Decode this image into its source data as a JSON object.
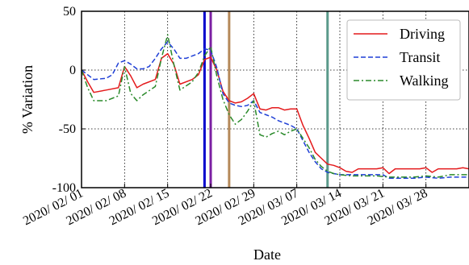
{
  "chart_data": {
    "type": "line",
    "xlabel": "Date",
    "ylabel": "% Variation",
    "ylim": [
      -100,
      50
    ],
    "yticks": [
      50,
      0,
      -50,
      -100
    ],
    "x_start_date": "2020/02/01",
    "x_end_date": "2020/04/04",
    "xticks": [
      {
        "date": "2020/02/01",
        "label": "2020/ 02/ 01"
      },
      {
        "date": "2020/02/08",
        "label": "2020/ 02/ 08"
      },
      {
        "date": "2020/02/15",
        "label": "2020/ 02/ 15"
      },
      {
        "date": "2020/02/22",
        "label": "2020/ 02/ 22"
      },
      {
        "date": "2020/02/29",
        "label": "2020/ 02/ 29"
      },
      {
        "date": "2020/03/07",
        "label": "2020/ 03/ 07"
      },
      {
        "date": "2020/03/14",
        "label": "2020/ 03/ 14"
      },
      {
        "date": "2020/03/21",
        "label": "2020/ 03/ 21"
      },
      {
        "date": "2020/03/28",
        "label": "2020/ 03/ 28"
      }
    ],
    "grid": true,
    "legend_position": "top-right",
    "vlines": [
      {
        "date": "2020/02/21",
        "color": "#0000cc"
      },
      {
        "date": "2020/02/22",
        "color": "#7b1fa2"
      },
      {
        "date": "2020/02/25",
        "color": "#b5895a"
      },
      {
        "date": "2020/03/12",
        "color": "#5b9a8b"
      }
    ],
    "series": [
      {
        "name": "Driving",
        "color": "#e41a1c",
        "dash": "",
        "points": [
          [
            "2020/02/01",
            0
          ],
          [
            "2020/02/02",
            -10
          ],
          [
            "2020/02/03",
            -19
          ],
          [
            "2020/02/05",
            -17
          ],
          [
            "2020/02/07",
            -15
          ],
          [
            "2020/02/08",
            3
          ],
          [
            "2020/02/09",
            -5
          ],
          [
            "2020/02/10",
            -15
          ],
          [
            "2020/02/11",
            -12
          ],
          [
            "2020/02/13",
            -8
          ],
          [
            "2020/02/14",
            10
          ],
          [
            "2020/02/15",
            14
          ],
          [
            "2020/02/16",
            5
          ],
          [
            "2020/02/17",
            -12
          ],
          [
            "2020/02/19",
            -8
          ],
          [
            "2020/02/20",
            -4
          ],
          [
            "2020/02/21",
            9
          ],
          [
            "2020/02/22",
            11
          ],
          [
            "2020/02/23",
            0
          ],
          [
            "2020/02/24",
            -18
          ],
          [
            "2020/02/25",
            -26
          ],
          [
            "2020/02/26",
            -28
          ],
          [
            "2020/02/27",
            -27
          ],
          [
            "2020/02/28",
            -24
          ],
          [
            "2020/02/29",
            -20
          ],
          [
            "2020/03/01",
            -33
          ],
          [
            "2020/03/02",
            -34
          ],
          [
            "2020/03/03",
            -32
          ],
          [
            "2020/03/04",
            -32
          ],
          [
            "2020/03/05",
            -34
          ],
          [
            "2020/03/06",
            -33
          ],
          [
            "2020/03/07",
            -33
          ],
          [
            "2020/03/08",
            -47
          ],
          [
            "2020/03/09",
            -58
          ],
          [
            "2020/03/10",
            -70
          ],
          [
            "2020/03/11",
            -75
          ],
          [
            "2020/03/12",
            -80
          ],
          [
            "2020/03/13",
            -81
          ],
          [
            "2020/03/14",
            -83
          ],
          [
            "2020/03/15",
            -86
          ],
          [
            "2020/03/16",
            -87
          ],
          [
            "2020/03/17",
            -84
          ],
          [
            "2020/03/18",
            -84
          ],
          [
            "2020/03/19",
            -84
          ],
          [
            "2020/03/20",
            -84
          ],
          [
            "2020/03/21",
            -83
          ],
          [
            "2020/03/22",
            -88
          ],
          [
            "2020/03/23",
            -84
          ],
          [
            "2020/03/24",
            -84
          ],
          [
            "2020/03/25",
            -84
          ],
          [
            "2020/03/26",
            -84
          ],
          [
            "2020/03/27",
            -84
          ],
          [
            "2020/03/28",
            -83
          ],
          [
            "2020/03/29",
            -87
          ],
          [
            "2020/03/30",
            -84
          ],
          [
            "2020/03/31",
            -84
          ],
          [
            "2020/04/01",
            -84
          ],
          [
            "2020/04/02",
            -84
          ],
          [
            "2020/04/03",
            -83
          ],
          [
            "2020/04/04",
            -84
          ]
        ]
      },
      {
        "name": "Transit",
        "color": "#1f3fd6",
        "dash": "6,3",
        "points": [
          [
            "2020/02/01",
            0
          ],
          [
            "2020/02/02",
            -4
          ],
          [
            "2020/02/03",
            -8
          ],
          [
            "2020/02/05",
            -7
          ],
          [
            "2020/02/06",
            -4
          ],
          [
            "2020/02/07",
            6
          ],
          [
            "2020/02/08",
            8
          ],
          [
            "2020/02/09",
            5
          ],
          [
            "2020/02/10",
            1
          ],
          [
            "2020/02/11",
            1
          ],
          [
            "2020/02/12",
            3
          ],
          [
            "2020/02/13",
            10
          ],
          [
            "2020/02/14",
            18
          ],
          [
            "2020/02/15",
            24
          ],
          [
            "2020/02/16",
            18
          ],
          [
            "2020/02/17",
            10
          ],
          [
            "2020/02/18",
            10
          ],
          [
            "2020/02/20",
            14
          ],
          [
            "2020/02/21",
            18
          ],
          [
            "2020/02/22",
            17
          ],
          [
            "2020/02/23",
            2
          ],
          [
            "2020/02/24",
            -20
          ],
          [
            "2020/02/25",
            -28
          ],
          [
            "2020/02/26",
            -30
          ],
          [
            "2020/02/27",
            -31
          ],
          [
            "2020/02/28",
            -30
          ],
          [
            "2020/02/29",
            -26
          ],
          [
            "2020/03/01",
            -36
          ],
          [
            "2020/03/02",
            -38
          ],
          [
            "2020/03/03",
            -40
          ],
          [
            "2020/03/04",
            -43
          ],
          [
            "2020/03/05",
            -45
          ],
          [
            "2020/03/06",
            -47
          ],
          [
            "2020/03/07",
            -50
          ],
          [
            "2020/03/08",
            -60
          ],
          [
            "2020/03/09",
            -70
          ],
          [
            "2020/03/10",
            -78
          ],
          [
            "2020/03/11",
            -84
          ],
          [
            "2020/03/12",
            -87
          ],
          [
            "2020/03/13",
            -88
          ],
          [
            "2020/03/14",
            -89
          ],
          [
            "2020/03/16",
            -89
          ],
          [
            "2020/03/18",
            -89
          ],
          [
            "2020/03/20",
            -89
          ],
          [
            "2020/03/21",
            -89
          ],
          [
            "2020/03/22",
            -92
          ],
          [
            "2020/03/24",
            -92
          ],
          [
            "2020/03/26",
            -92
          ],
          [
            "2020/03/28",
            -91
          ],
          [
            "2020/03/30",
            -92
          ],
          [
            "2020/04/01",
            -91
          ],
          [
            "2020/04/03",
            -91
          ],
          [
            "2020/04/04",
            -91
          ]
        ]
      },
      {
        "name": "Walking",
        "color": "#2a8a2a",
        "dash": "7,3,2,3",
        "points": [
          [
            "2020/02/01",
            0
          ],
          [
            "2020/02/02",
            -15
          ],
          [
            "2020/02/03",
            -26
          ],
          [
            "2020/02/05",
            -26
          ],
          [
            "2020/02/07",
            -22
          ],
          [
            "2020/02/08",
            3
          ],
          [
            "2020/02/09",
            -20
          ],
          [
            "2020/02/10",
            -26
          ],
          [
            "2020/02/11",
            -21
          ],
          [
            "2020/02/13",
            -14
          ],
          [
            "2020/02/14",
            10
          ],
          [
            "2020/02/15",
            30
          ],
          [
            "2020/02/16",
            5
          ],
          [
            "2020/02/17",
            -17
          ],
          [
            "2020/02/19",
            -10
          ],
          [
            "2020/02/20",
            -2
          ],
          [
            "2020/02/21",
            12
          ],
          [
            "2020/02/22",
            20
          ],
          [
            "2020/02/23",
            -5
          ],
          [
            "2020/02/24",
            -25
          ],
          [
            "2020/02/25",
            -38
          ],
          [
            "2020/02/26",
            -46
          ],
          [
            "2020/02/27",
            -42
          ],
          [
            "2020/02/28",
            -35
          ],
          [
            "2020/02/29",
            -26
          ],
          [
            "2020/03/01",
            -55
          ],
          [
            "2020/03/02",
            -57
          ],
          [
            "2020/03/03",
            -54
          ],
          [
            "2020/03/04",
            -52
          ],
          [
            "2020/03/05",
            -55
          ],
          [
            "2020/03/06",
            -52
          ],
          [
            "2020/03/07",
            -50
          ],
          [
            "2020/03/08",
            -58
          ],
          [
            "2020/03/09",
            -66
          ],
          [
            "2020/03/10",
            -76
          ],
          [
            "2020/03/11",
            -82
          ],
          [
            "2020/03/12",
            -86
          ],
          [
            "2020/03/13",
            -88
          ],
          [
            "2020/03/14",
            -89
          ],
          [
            "2020/03/16",
            -90
          ],
          [
            "2020/03/18",
            -90
          ],
          [
            "2020/03/20",
            -90
          ],
          [
            "2020/03/22",
            -91
          ],
          [
            "2020/03/24",
            -91
          ],
          [
            "2020/03/26",
            -91
          ],
          [
            "2020/03/28",
            -90
          ],
          [
            "2020/03/30",
            -91
          ],
          [
            "2020/04/01",
            -89
          ],
          [
            "2020/04/03",
            -89
          ],
          [
            "2020/04/04",
            -89
          ]
        ]
      }
    ]
  }
}
